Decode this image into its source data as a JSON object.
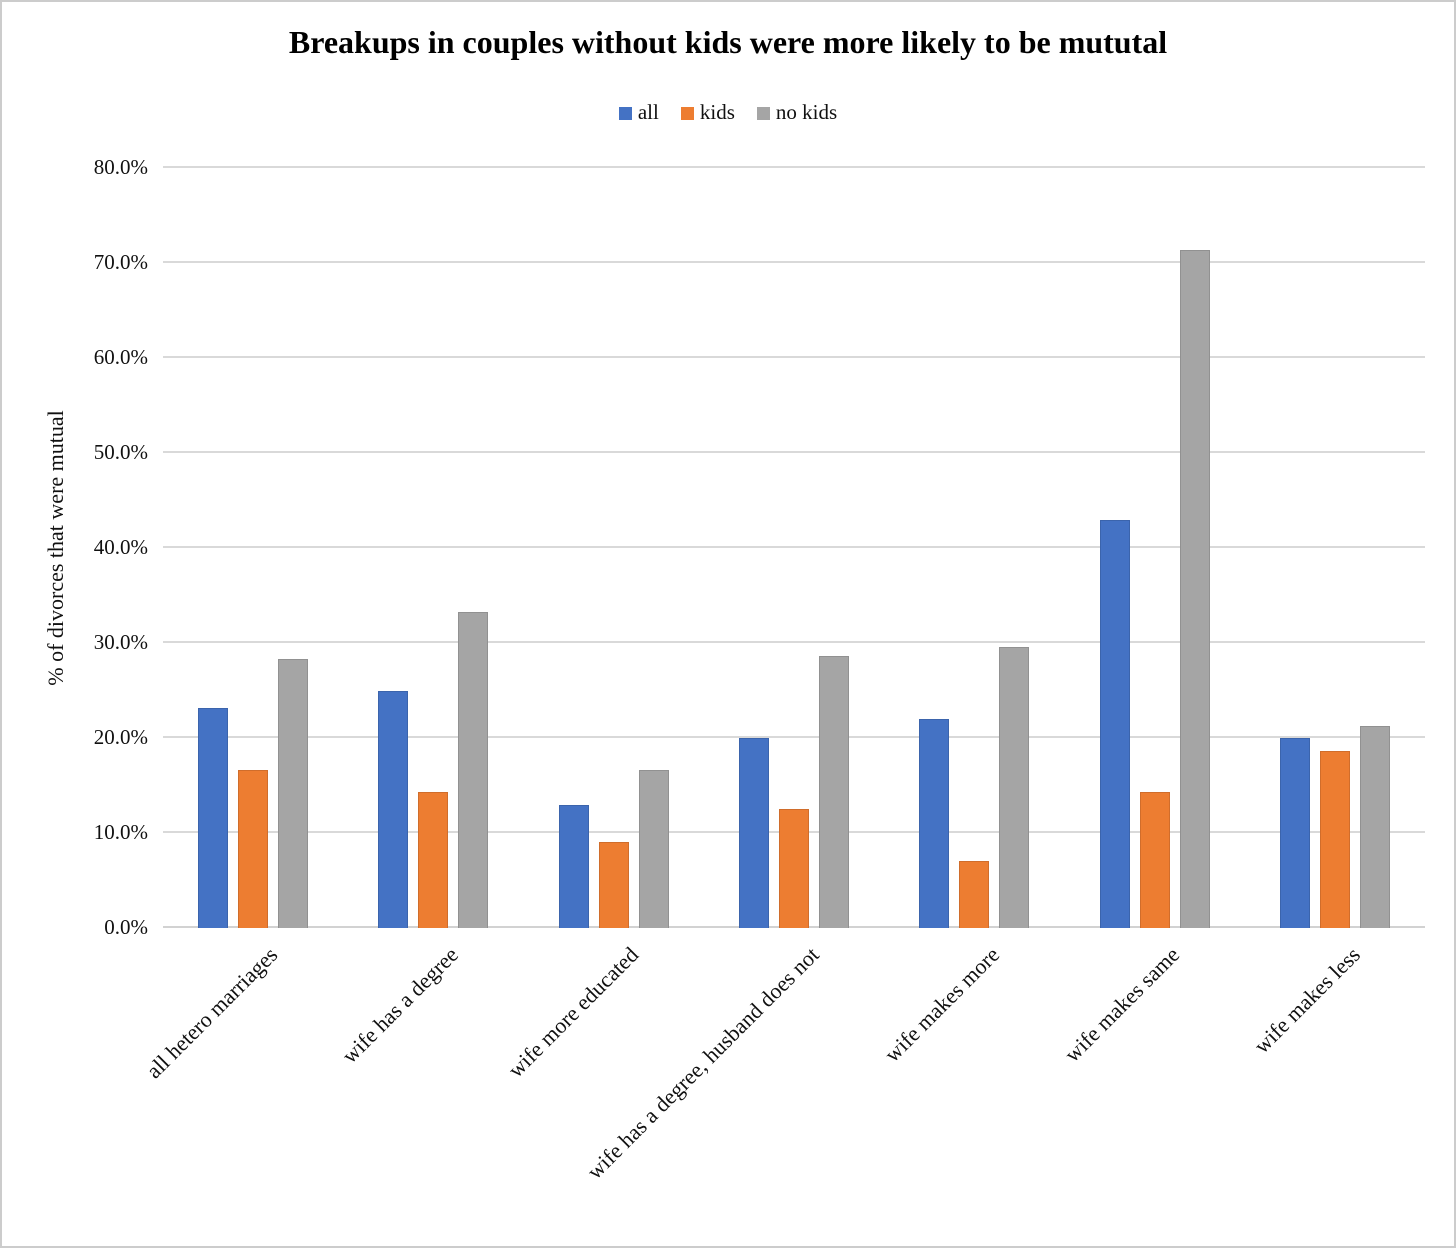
{
  "chart_data": {
    "type": "bar",
    "title": "Breakups in couples without kids were more likely to be mututal",
    "ylabel": "% of divorces that were mutual",
    "xlabel": "",
    "ylim": [
      0,
      80
    ],
    "grid": true,
    "legend_position": "top-center",
    "x_tick_angle": -45,
    "y_ticks": [
      "0.0%",
      "10.0%",
      "20.0%",
      "30.0%",
      "40.0%",
      "50.0%",
      "60.0%",
      "70.0%",
      "80.0%"
    ],
    "categories": [
      "all hetero marriages",
      "wife has a degree",
      "wife more educated",
      "wife has a degree, husband does not",
      "wife makes more",
      "wife makes same",
      "wife makes less"
    ],
    "series": [
      {
        "name": "all",
        "color": "#4472C4",
        "values": [
          23.2,
          25.0,
          13.0,
          20.0,
          22.0,
          42.9,
          20.0
        ]
      },
      {
        "name": "kids",
        "color": "#ED7D31",
        "values": [
          16.6,
          14.3,
          9.1,
          12.5,
          7.1,
          14.3,
          18.6
        ]
      },
      {
        "name": "no kids",
        "color": "#A5A5A5",
        "values": [
          28.3,
          33.3,
          16.6,
          28.6,
          29.6,
          71.4,
          21.3
        ]
      }
    ]
  }
}
